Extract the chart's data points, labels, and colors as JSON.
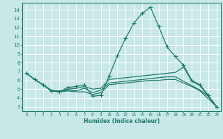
{
  "bg_color": "#c8e8e8",
  "grid_color": "#ffffff",
  "line_color": "#1a7a6a",
  "marker": "+",
  "markersize": 4,
  "linewidth": 0.9,
  "series1_x": [
    0,
    1,
    2,
    3,
    4,
    5,
    6,
    7,
    8,
    9,
    10,
    11,
    12,
    13,
    14,
    15,
    16,
    17,
    18,
    19,
    20,
    21,
    22,
    23
  ],
  "series1_y": [
    6.8,
    6.1,
    5.5,
    4.8,
    4.7,
    5.2,
    5.3,
    5.5,
    4.2,
    4.3,
    6.5,
    8.8,
    10.8,
    12.5,
    13.6,
    14.3,
    12.1,
    9.8,
    8.7,
    7.7,
    6.0,
    5.5,
    4.3,
    3.0
  ],
  "series2_x": [
    0,
    1,
    2,
    3,
    4,
    5,
    6,
    7,
    8,
    9,
    10,
    11,
    12,
    13,
    14,
    15,
    16,
    17,
    18,
    19,
    20,
    21,
    22,
    23
  ],
  "series2_y": [
    6.8,
    6.1,
    5.5,
    4.9,
    4.8,
    5.0,
    5.1,
    5.3,
    5.0,
    5.1,
    6.1,
    6.2,
    6.3,
    6.4,
    6.5,
    6.6,
    6.7,
    6.8,
    6.9,
    7.5,
    5.9,
    5.4,
    4.2,
    3.0
  ],
  "series3_x": [
    0,
    1,
    2,
    3,
    4,
    5,
    6,
    7,
    8,
    9,
    10,
    11,
    12,
    13,
    14,
    15,
    16,
    17,
    18,
    19,
    20,
    21,
    22,
    23
  ],
  "series3_y": [
    6.8,
    6.1,
    5.5,
    4.8,
    4.7,
    4.9,
    4.8,
    5.1,
    4.6,
    4.9,
    5.7,
    5.8,
    5.9,
    6.0,
    6.1,
    6.2,
    6.3,
    6.4,
    6.4,
    5.9,
    5.4,
    4.9,
    4.2,
    3.0
  ],
  "series4_x": [
    0,
    1,
    2,
    3,
    4,
    5,
    6,
    7,
    8,
    9,
    10,
    11,
    12,
    13,
    14,
    15,
    16,
    17,
    18,
    19,
    20,
    21,
    22,
    23
  ],
  "series4_y": [
    6.8,
    6.1,
    5.5,
    4.8,
    4.7,
    4.8,
    4.7,
    4.7,
    4.4,
    4.6,
    5.5,
    5.6,
    5.7,
    5.8,
    5.9,
    6.0,
    6.0,
    6.1,
    6.1,
    5.7,
    5.3,
    4.8,
    3.9,
    3.0
  ],
  "xlabel": "Humidex (Indice chaleur)",
  "ylabel_ticks": [
    3,
    4,
    5,
    6,
    7,
    8,
    9,
    10,
    11,
    12,
    13,
    14
  ],
  "xlim": [
    -0.5,
    23.5
  ],
  "ylim": [
    2.5,
    14.8
  ],
  "xticks": [
    0,
    1,
    2,
    3,
    4,
    5,
    6,
    7,
    8,
    9,
    10,
    11,
    12,
    13,
    14,
    15,
    16,
    17,
    18,
    19,
    20,
    21,
    22,
    23
  ]
}
